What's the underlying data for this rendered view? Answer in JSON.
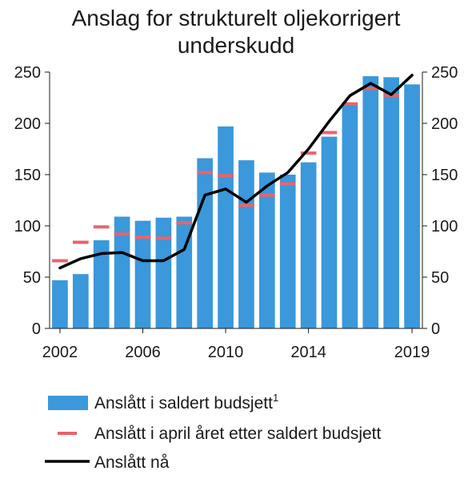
{
  "chart_data": {
    "type": "bar",
    "title": "Anslag for strukturelt oljekorrigert underskudd",
    "xlabel": "",
    "ylabel": "",
    "x": [
      2002,
      2003,
      2004,
      2005,
      2006,
      2007,
      2008,
      2009,
      2010,
      2011,
      2012,
      2013,
      2014,
      2015,
      2016,
      2017,
      2018,
      2019
    ],
    "xticks": [
      "2002",
      "2006",
      "2010",
      "2014",
      "2019"
    ],
    "ylim": [
      0,
      250
    ],
    "y2lim": [
      0,
      250
    ],
    "yticks": [
      0,
      50,
      100,
      150,
      200,
      250
    ],
    "grid": false,
    "legend": "bottom",
    "series": [
      {
        "name": "Anslått i saldert budsjett",
        "footnote": "1",
        "type": "bar",
        "color": "#3A98DB",
        "values": [
          47,
          53,
          86,
          109,
          105,
          108,
          109,
          166,
          197,
          164,
          152,
          150,
          162,
          187,
          219,
          246,
          245,
          238
        ]
      },
      {
        "name": "Anslått i april året etter saldert budsjett",
        "type": "dash",
        "color": "#E8646D",
        "values": [
          66,
          84,
          99,
          92,
          89,
          88,
          103,
          152,
          149,
          120,
          130,
          141,
          171,
          191,
          219,
          234,
          227,
          null
        ]
      },
      {
        "name": "Anslått nå",
        "type": "line",
        "color": "#000000",
        "values": [
          59,
          68,
          73,
          74,
          66,
          66,
          77,
          130,
          136,
          123,
          139,
          152,
          175,
          202,
          227,
          239,
          228,
          247
        ]
      }
    ]
  }
}
